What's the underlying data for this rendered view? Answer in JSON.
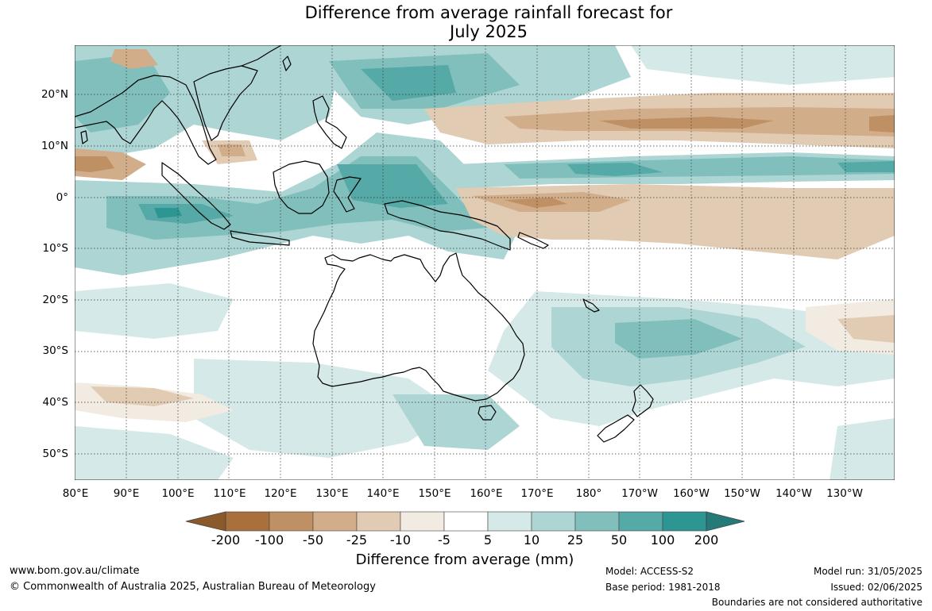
{
  "title": {
    "line1": "Difference from average rainfall forecast for",
    "line2": "July 2025"
  },
  "map": {
    "lat_labels": [
      "20°N",
      "10°N",
      "0°",
      "10°S",
      "20°S",
      "30°S",
      "40°S",
      "50°S"
    ],
    "lon_labels": [
      "80°E",
      "90°E",
      "100°E",
      "110°E",
      "120°E",
      "130°E",
      "140°E",
      "150°E",
      "160°E",
      "170°E",
      "180°",
      "170°W",
      "160°W",
      "150°W",
      "140°W",
      "130°W"
    ],
    "legend": {
      "ticks": [
        "-200",
        "-100",
        "-50",
        "-25",
        "-10",
        "-5",
        "5",
        "10",
        "25",
        "50",
        "100",
        "200"
      ],
      "colors": [
        "#a9703b",
        "#bf9064",
        "#d2ad8a",
        "#e2cbb3",
        "#f1ebe2",
        "#ffffff",
        "#d5e9e8",
        "#acd5d3",
        "#80bfbc",
        "#55a9a6",
        "#2e9692"
      ],
      "label": "Difference from average (mm)"
    }
  },
  "footer": {
    "website": "www.bom.gov.au/climate",
    "copyright": "© Commonwealth of Australia 2025, Australian Bureau of Meteorology",
    "model": "Model: ACCESS-S2",
    "base_period": "Base period: 1981-2018",
    "model_run": "Model run: 31/05/2025",
    "issued": "Issued: 02/06/2025",
    "disclaimer": "Boundaries are not considered authoritative"
  }
}
